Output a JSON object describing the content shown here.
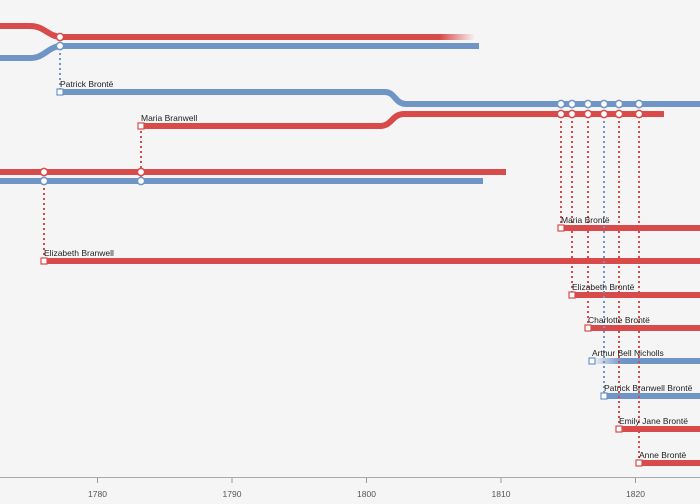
{
  "colors": {
    "female": "#d94b4b",
    "male": "#6f95c7",
    "axis": "#999999",
    "background": "#f5f5f5"
  },
  "people": [
    {
      "key": "patrick",
      "name": "Patrick Brontë",
      "gender": "male",
      "birth_year": 1777
    },
    {
      "key": "maria_branwell",
      "name": "Maria Branwell",
      "gender": "female",
      "birth_year": 1783
    },
    {
      "key": "elizabeth_branwell",
      "name": "Elizabeth Branwell",
      "gender": "female",
      "birth_year": 1776
    },
    {
      "key": "maria_bronte",
      "name": "Maria Brontë",
      "gender": "female",
      "birth_year": 1814
    },
    {
      "key": "elizabeth_bronte",
      "name": "Elizabeth Brontë",
      "gender": "female",
      "birth_year": 1815
    },
    {
      "key": "charlotte",
      "name": "Charlotte Brontë",
      "gender": "female",
      "birth_year": 1816
    },
    {
      "key": "arthur",
      "name": "Arthur Bell Nicholls",
      "gender": "male",
      "birth_year": 1819
    },
    {
      "key": "branwell",
      "name": "Patrick Branwell Brontë",
      "gender": "male",
      "birth_year": 1817
    },
    {
      "key": "emily",
      "name": "Emily Jane Brontë",
      "gender": "female",
      "birth_year": 1818
    },
    {
      "key": "anne",
      "name": "Anne Brontë",
      "gender": "female",
      "birth_year": 1820
    }
  ],
  "axis": {
    "ticks": [
      "1780",
      "1790",
      "1800",
      "1810",
      "1820"
    ]
  }
}
